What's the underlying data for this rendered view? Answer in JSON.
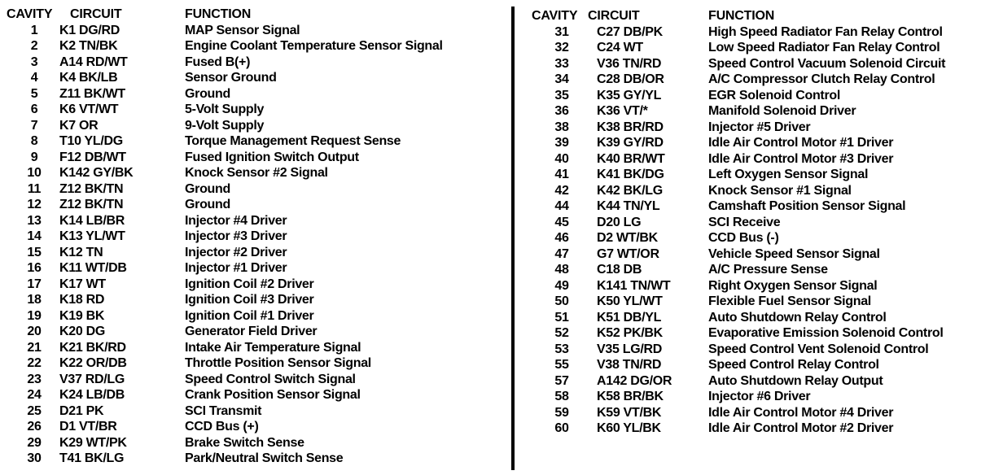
{
  "headers": {
    "cavity": "CAVITY",
    "circuit": "CIRCUIT",
    "function": "FUNCTION"
  },
  "left_rows": [
    {
      "cavity": "1",
      "circuit": "K1 DG/RD",
      "function": "MAP Sensor Signal"
    },
    {
      "cavity": "2",
      "circuit": "K2 TN/BK",
      "function": "Engine Coolant Temperature Sensor Signal"
    },
    {
      "cavity": "3",
      "circuit": "A14 RD/WT",
      "function": "Fused B(+)"
    },
    {
      "cavity": "4",
      "circuit": "K4 BK/LB",
      "function": "Sensor Ground"
    },
    {
      "cavity": "5",
      "circuit": "Z11 BK/WT",
      "function": "Ground"
    },
    {
      "cavity": "6",
      "circuit": "K6 VT/WT",
      "function": "5-Volt Supply"
    },
    {
      "cavity": "7",
      "circuit": "K7 OR",
      "function": "9-Volt Supply"
    },
    {
      "cavity": "8",
      "circuit": "T10 YL/DG",
      "function": "Torque Management Request Sense"
    },
    {
      "cavity": "9",
      "circuit": "F12 DB/WT",
      "function": "Fused Ignition Switch Output"
    },
    {
      "cavity": "10",
      "circuit": "K142 GY/BK",
      "function": "Knock Sensor #2 Signal"
    },
    {
      "cavity": "11",
      "circuit": "Z12 BK/TN",
      "function": "Ground"
    },
    {
      "cavity": "12",
      "circuit": "Z12 BK/TN",
      "function": "Ground"
    },
    {
      "cavity": "13",
      "circuit": "K14 LB/BR",
      "function": "Injector #4 Driver"
    },
    {
      "cavity": "14",
      "circuit": "K13 YL/WT",
      "function": "Injector #3 Driver"
    },
    {
      "cavity": "15",
      "circuit": "K12 TN",
      "function": "Injector #2 Driver"
    },
    {
      "cavity": "16",
      "circuit": "K11 WT/DB",
      "function": "Injector #1 Driver"
    },
    {
      "cavity": "17",
      "circuit": "K17 WT",
      "function": "Ignition Coil #2 Driver"
    },
    {
      "cavity": "18",
      "circuit": "K18 RD",
      "function": "Ignition Coil #3 Driver"
    },
    {
      "cavity": "19",
      "circuit": "K19 BK",
      "function": "Ignition Coil #1 Driver"
    },
    {
      "cavity": "20",
      "circuit": "K20 DG",
      "function": "Generator Field Driver"
    },
    {
      "cavity": "21",
      "circuit": "K21 BK/RD",
      "function": "Intake Air Temperature Signal"
    },
    {
      "cavity": "22",
      "circuit": "K22 OR/DB",
      "function": "Throttle Position Sensor Signal"
    },
    {
      "cavity": "23",
      "circuit": "V37 RD/LG",
      "function": "Speed Control Switch Signal"
    },
    {
      "cavity": "24",
      "circuit": "K24 LB/DB",
      "function": "Crank Position Sensor Signal"
    },
    {
      "cavity": "25",
      "circuit": "D21 PK",
      "function": "SCI Transmit"
    },
    {
      "cavity": "26",
      "circuit": "D1 VT/BR",
      "function": "CCD Bus (+)"
    },
    {
      "cavity": "29",
      "circuit": "K29 WT/PK",
      "function": "Brake Switch Sense"
    },
    {
      "cavity": "30",
      "circuit": "T41 BK/LG",
      "function": "Park/Neutral Switch Sense"
    }
  ],
  "right_rows": [
    {
      "cavity": "31",
      "circuit": "C27 DB/PK",
      "function": "High Speed Radiator Fan Relay Control"
    },
    {
      "cavity": "32",
      "circuit": "C24 WT",
      "function": "Low Speed Radiator Fan Relay Control"
    },
    {
      "cavity": "33",
      "circuit": "V36 TN/RD",
      "function": "Speed Control Vacuum Solenoid Circuit"
    },
    {
      "cavity": "34",
      "circuit": "C28 DB/OR",
      "function": "A/C Compressor Clutch Relay Control"
    },
    {
      "cavity": "35",
      "circuit": "K35 GY/YL",
      "function": "EGR Solenoid Control"
    },
    {
      "cavity": "36",
      "circuit": "K36 VT/*",
      "function": "Manifold Solenoid Driver"
    },
    {
      "cavity": "38",
      "circuit": "K38 BR/RD",
      "function": "Injector #5 Driver"
    },
    {
      "cavity": "39",
      "circuit": "K39 GY/RD",
      "function": "Idle Air Control Motor #1 Driver"
    },
    {
      "cavity": "40",
      "circuit": "K40 BR/WT",
      "function": "Idle Air Control Motor #3 Driver"
    },
    {
      "cavity": "41",
      "circuit": "K41 BK/DG",
      "function": "Left Oxygen Sensor Signal"
    },
    {
      "cavity": "42",
      "circuit": "K42 BK/LG",
      "function": "Knock Sensor #1 Signal"
    },
    {
      "cavity": "44",
      "circuit": "K44 TN/YL",
      "function": "Camshaft Position Sensor Signal"
    },
    {
      "cavity": "45",
      "circuit": "D20 LG",
      "function": "SCI Receive"
    },
    {
      "cavity": "46",
      "circuit": "D2 WT/BK",
      "function": "CCD Bus (-)"
    },
    {
      "cavity": "47",
      "circuit": "G7 WT/OR",
      "function": "Vehicle Speed Sensor Signal"
    },
    {
      "cavity": "48",
      "circuit": "C18 DB",
      "function": "A/C Pressure Sense"
    },
    {
      "cavity": "49",
      "circuit": "K141 TN/WT",
      "function": "Right Oxygen Sensor Signal"
    },
    {
      "cavity": "50",
      "circuit": "K50 YL/WT",
      "function": "Flexible Fuel Sensor Signal"
    },
    {
      "cavity": "51",
      "circuit": "K51 DB/YL",
      "function": "Auto Shutdown Relay Control"
    },
    {
      "cavity": "52",
      "circuit": "K52 PK/BK",
      "function": "Evaporative Emission Solenoid Control"
    },
    {
      "cavity": "53",
      "circuit": "V35 LG/RD",
      "function": "Speed Control Vent Solenoid Control"
    },
    {
      "cavity": "55",
      "circuit": "V38 TN/RD",
      "function": "Speed Control Relay Control"
    },
    {
      "cavity": "57",
      "circuit": "A142 DG/OR",
      "function": "Auto Shutdown Relay Output"
    },
    {
      "cavity": "58",
      "circuit": "K58 BR/BK",
      "function": "Injector #6 Driver"
    },
    {
      "cavity": "59",
      "circuit": "K59 VT/BK",
      "function": "Idle Air Control Motor #4 Driver"
    },
    {
      "cavity": "60",
      "circuit": "K60 YL/BK",
      "function": "Idle Air Control Motor #2 Driver"
    }
  ]
}
